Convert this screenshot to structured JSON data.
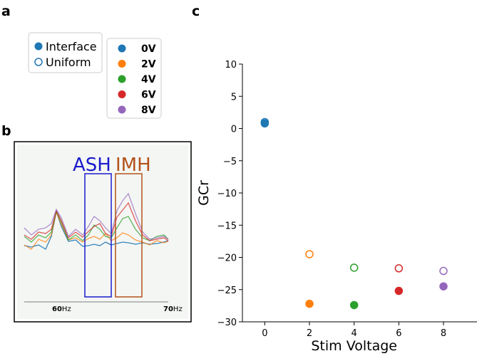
{
  "panels": {
    "a": "a",
    "b": "b",
    "c": "c"
  },
  "style_legend": [
    {
      "label": "Interface",
      "filled": true
    },
    {
      "label": "Uniform",
      "filled": false
    }
  ],
  "colors": {
    "0V": "#1f77b4",
    "2V": "#ff7f0e",
    "4V": "#2ca02c",
    "6V": "#d62728",
    "8V": "#9467bd",
    "ash_box": "#1a1acc",
    "imh_box": "#b3521a"
  },
  "voltage_legend": [
    {
      "label": "0V",
      "color": "#1f77b4"
    },
    {
      "label": "2V",
      "color": "#ff7f0e"
    },
    {
      "label": "4V",
      "color": "#2ca02c"
    },
    {
      "label": "6V",
      "color": "#d62728"
    },
    {
      "label": "8V",
      "color": "#9467bd"
    }
  ],
  "spectrum_inset": {
    "ash_label": "ASH",
    "imh_label": "IMH",
    "tick_60": "60",
    "tick_70": "70",
    "unit": "Hz"
  },
  "chart_data": {
    "type": "scatter",
    "xlabel": "Stim Voltage",
    "ylabel": "GCr",
    "xlim": [
      -1,
      9.5
    ],
    "ylim": [
      -30,
      10
    ],
    "xticks": [
      0,
      2,
      4,
      6,
      8
    ],
    "yticks": [
      10,
      5,
      0,
      -5,
      -10,
      -15,
      -20,
      -25,
      -30
    ],
    "grid": false,
    "series": [
      {
        "name": "Interface",
        "filled": true,
        "points": [
          {
            "x": 0,
            "y": 0.8,
            "color": "#1f77b4"
          },
          {
            "x": 2,
            "y": -27.2,
            "color": "#ff7f0e"
          },
          {
            "x": 4,
            "y": -27.4,
            "color": "#2ca02c"
          },
          {
            "x": 6,
            "y": -25.2,
            "color": "#d62728"
          },
          {
            "x": 8,
            "y": -24.5,
            "color": "#9467bd"
          }
        ]
      },
      {
        "name": "Uniform",
        "filled": false,
        "points": [
          {
            "x": 0,
            "y": 1.0,
            "color": "#1f77b4"
          },
          {
            "x": 2,
            "y": -19.5,
            "color": "#ff7f0e"
          },
          {
            "x": 4,
            "y": -21.6,
            "color": "#2ca02c"
          },
          {
            "x": 6,
            "y": -21.7,
            "color": "#d62728"
          },
          {
            "x": 8,
            "y": -22.1,
            "color": "#9467bd"
          }
        ]
      }
    ]
  }
}
